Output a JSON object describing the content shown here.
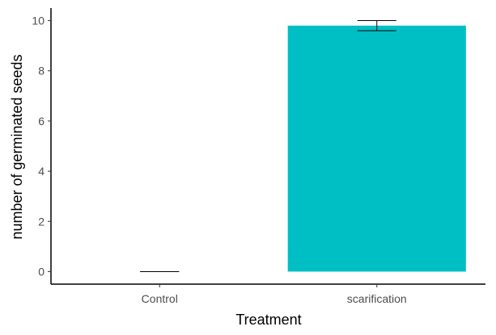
{
  "chart_data": {
    "type": "bar",
    "xlabel": "Treatment",
    "ylabel": "number of germinated seeds",
    "categories": [
      "Control",
      "scarification"
    ],
    "values": [
      0,
      9.8
    ],
    "error": [
      {
        "low": 0,
        "high": 0
      },
      {
        "low": 9.6,
        "high": 10.0
      }
    ],
    "ylim": [
      -0.5,
      10.5
    ],
    "yticks": [
      0,
      2,
      4,
      6,
      8,
      10
    ],
    "grid": false,
    "legend": "none",
    "colors": {
      "bar": "#00BFC4",
      "axis": "#000000",
      "errorbar": "#000000"
    }
  }
}
